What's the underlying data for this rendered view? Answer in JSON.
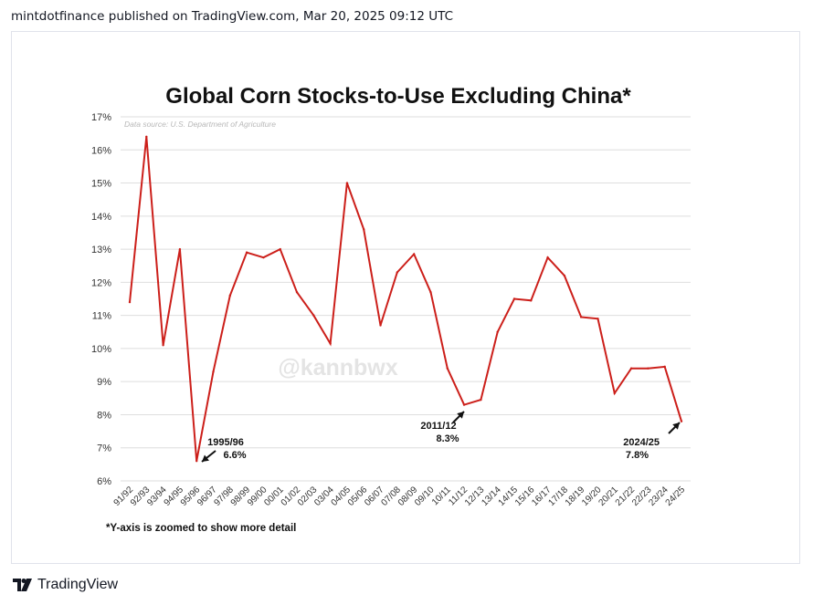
{
  "header": {
    "publisher_line": "mintdotfinance published on TradingView.com, Mar 20, 2025 09:12 UTC"
  },
  "footer": {
    "brand": "TradingView"
  },
  "chart_data": {
    "type": "line",
    "title": "Global Corn Stocks-to-Use Excluding China*",
    "source_note": "Data source: U.S. Department of Agriculture",
    "watermark": "@kannbwx",
    "footnote": "*Y-axis is zoomed to show more detail",
    "line_color": "#cc1f1a",
    "grid": true,
    "ylim": [
      6,
      17
    ],
    "y_ticks": [
      "6%",
      "7%",
      "8%",
      "9%",
      "10%",
      "11%",
      "12%",
      "13%",
      "14%",
      "15%",
      "16%",
      "17%"
    ],
    "categories": [
      "91/92",
      "92/93",
      "93/94",
      "94/95",
      "95/96",
      "96/97",
      "97/98",
      "98/99",
      "99/00",
      "00/01",
      "01/02",
      "02/03",
      "03/04",
      "04/05",
      "05/06",
      "06/07",
      "07/08",
      "08/09",
      "09/10",
      "10/11",
      "11/12",
      "12/13",
      "13/14",
      "14/15",
      "15/16",
      "16/17",
      "17/18",
      "18/19",
      "19/20",
      "20/21",
      "21/22",
      "22/23",
      "23/24",
      "24/25"
    ],
    "series": [
      {
        "values": [
          11.4,
          16.4,
          10.1,
          13.0,
          6.6,
          9.3,
          11.6,
          12.9,
          12.75,
          13.0,
          11.7,
          11.0,
          10.15,
          15.0,
          13.6,
          10.7,
          12.3,
          12.85,
          11.7,
          9.4,
          8.3,
          8.45,
          10.5,
          11.5,
          11.45,
          12.75,
          12.2,
          10.95,
          10.9,
          8.65,
          9.4,
          9.4,
          9.45,
          7.8
        ]
      }
    ],
    "annotations": [
      {
        "label": "1995/96",
        "value_label": "6.6%",
        "category_index": 4
      },
      {
        "label": "2011/12",
        "value_label": "8.3%",
        "category_index": 20
      },
      {
        "label": "2024/25",
        "value_label": "7.8%",
        "category_index": 33
      }
    ]
  }
}
